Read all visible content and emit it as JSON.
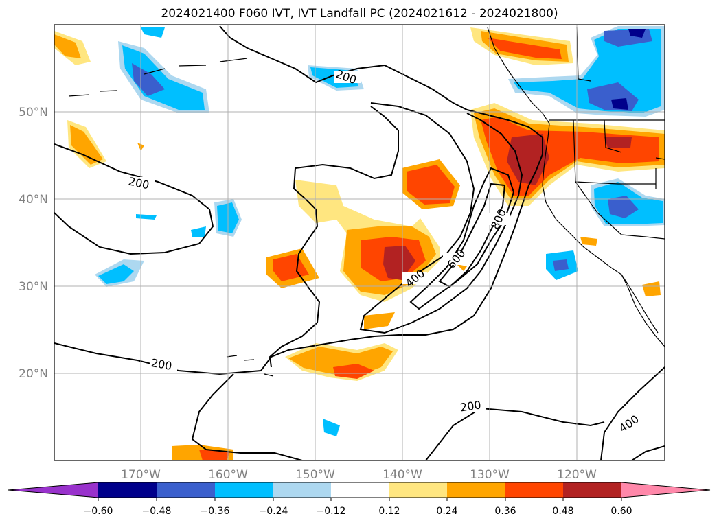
{
  "title": "2024021400 F060 IVT, IVT Landfall PC (2024021612 - 2024021800)",
  "lat_labels": [
    "50°N",
    "40°N",
    "30°N",
    "20°N"
  ],
  "lon_labels": [
    "170°W",
    "160°W",
    "150°W",
    "140°W",
    "130°W",
    "120°W"
  ],
  "contour_labels": [
    "200",
    "200",
    "200",
    "400",
    "600",
    "800",
    "200",
    "400"
  ],
  "colorbar": {
    "ticks": [
      "−0.60",
      "−0.48",
      "−0.36",
      "−0.24",
      "−0.12",
      "0.12",
      "0.24",
      "0.36",
      "0.48",
      "0.60"
    ],
    "colors": [
      "#9932cc",
      "#00008b",
      "#3a5fcd",
      "#00bfff",
      "#add8f0",
      "#ffffff",
      "#ffe680",
      "#ffa500",
      "#ff4500",
      "#b22222",
      "#ff88aa"
    ]
  }
}
